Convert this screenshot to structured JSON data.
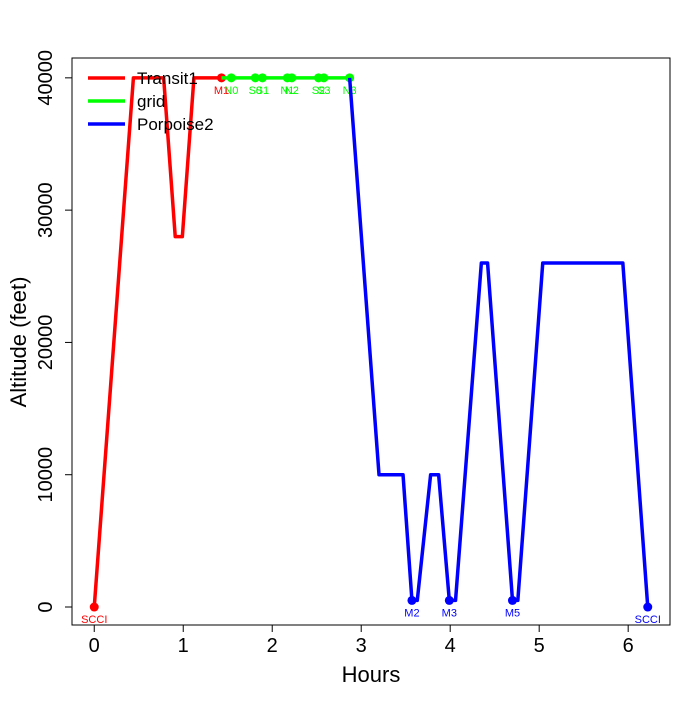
{
  "chart_data": {
    "type": "line",
    "x_label": "Hours",
    "y_label": "Altitude (feet)",
    "xlim": [
      -0.25,
      6.47
    ],
    "ylim": [
      -1360,
      41500
    ],
    "xticks": [
      0,
      1,
      2,
      3,
      4,
      5,
      6
    ],
    "yticks": [
      0,
      10000,
      20000,
      30000,
      40000
    ],
    "legend": "top-left",
    "series": [
      {
        "name": "Transit1",
        "color": "#ff0000",
        "x": [
          0,
          0.44,
          0.78,
          0.91,
          0.99,
          1.12,
          1.43
        ],
        "values": [
          0,
          40000,
          40000,
          28000,
          28000,
          40000,
          40000
        ],
        "point_labels": [
          "SCCI",
          null,
          null,
          null,
          null,
          null,
          "M1"
        ]
      },
      {
        "name": "grid",
        "color": "#00ff00",
        "x": [
          1.43,
          1.54,
          1.81,
          1.89,
          2.17,
          2.22,
          2.52,
          2.58,
          2.87
        ],
        "values": [
          40000,
          40000,
          40000,
          40000,
          40000,
          40000,
          40000,
          40000,
          40000
        ],
        "point_labels": [
          null,
          "N0",
          "S0",
          "S1",
          "N1",
          "N2",
          "S2",
          "S3",
          "N3"
        ]
      },
      {
        "name": "Porpoise2",
        "color": "#0000ff",
        "x": [
          2.87,
          3.2,
          3.47,
          3.57,
          3.63,
          3.78,
          3.87,
          3.99,
          4.06,
          4.35,
          4.42,
          4.7,
          4.76,
          5.04,
          5.94,
          6.22
        ],
        "values": [
          40000,
          10000,
          10000,
          500,
          500,
          10000,
          10000,
          500,
          500,
          26000,
          26000,
          500,
          500,
          26000,
          26000,
          0
        ],
        "point_labels": [
          null,
          null,
          null,
          "M2",
          null,
          null,
          null,
          "M3",
          null,
          null,
          null,
          "M5",
          null,
          null,
          null,
          "SCCI"
        ]
      }
    ]
  }
}
